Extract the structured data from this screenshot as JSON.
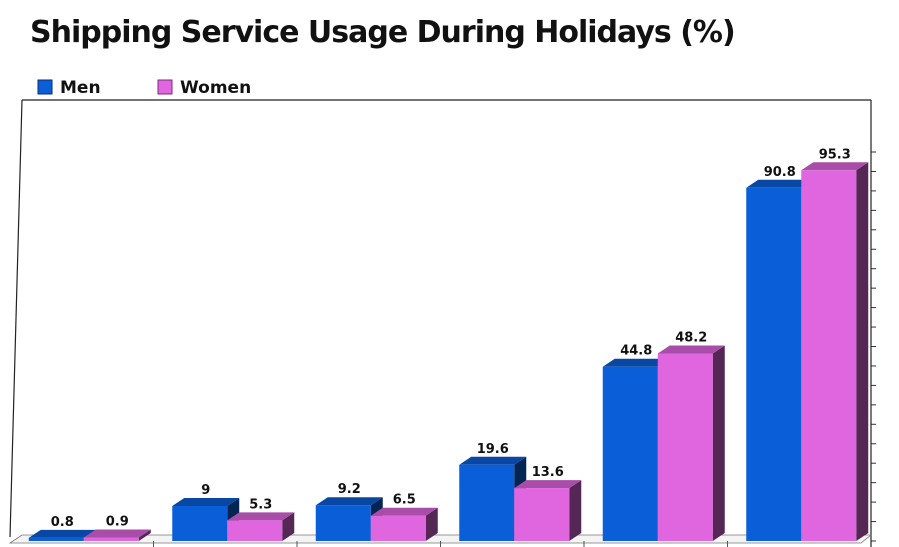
{
  "chart_data": {
    "type": "bar",
    "title": "Shipping Service Usage During Holidays (%)",
    "categories": [
      "",
      "",
      "",
      "",
      "",
      ""
    ],
    "series": [
      {
        "name": "Men",
        "color": "#0a5fd9",
        "values": [
          0.8,
          9,
          9.2,
          19.6,
          44.8,
          90.8
        ]
      },
      {
        "name": "Women",
        "color": "#e066e0",
        "values": [
          0.9,
          5.3,
          6.5,
          13.6,
          48.2,
          95.3
        ]
      }
    ],
    "ylim": [
      0,
      100
    ],
    "legend_position": "top-left",
    "grid": false
  }
}
